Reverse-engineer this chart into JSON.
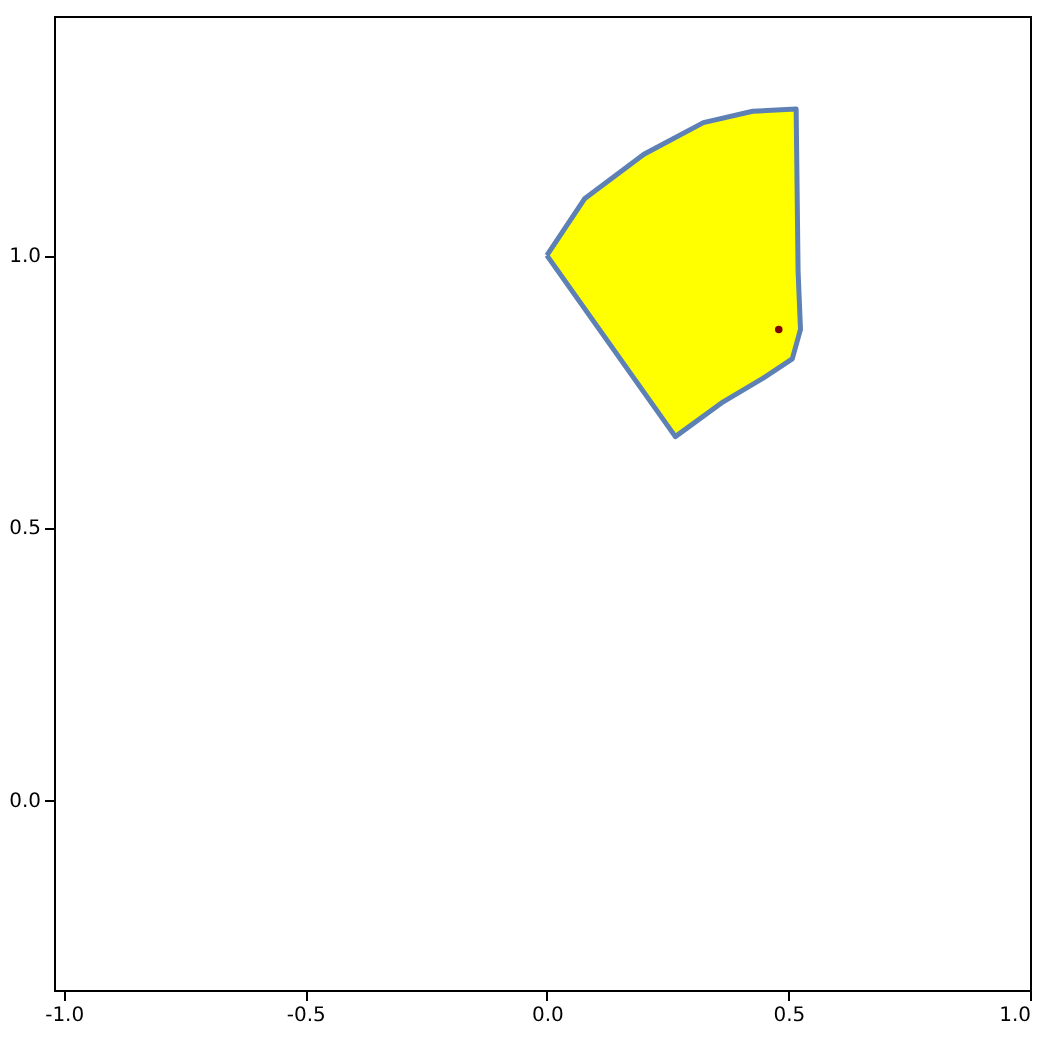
{
  "chart_data": {
    "type": "area",
    "xlim": [
      -1.02,
      1.0
    ],
    "ylim": [
      -0.35,
      1.44
    ],
    "xticks": [
      {
        "value": -1,
        "label": "-1.0"
      },
      {
        "value": -0.5,
        "label": "-0.5"
      },
      {
        "value": 0,
        "label": "0.0"
      },
      {
        "value": 0.5,
        "label": "0.5"
      },
      {
        "value": 1,
        "label": "1.0"
      }
    ],
    "yticks": [
      {
        "value": 0,
        "label": "0.0"
      },
      {
        "value": 0.5,
        "label": "0.5"
      },
      {
        "value": 1,
        "label": "1.0"
      }
    ],
    "grid": false,
    "series": [
      {
        "color": "#ffff00",
        "x": [
          0.0,
          0.078,
          0.201,
          0.324,
          0.426,
          0.516,
          0.52,
          0.525,
          0.508,
          0.447,
          0.365,
          0.266,
          0.0
        ],
        "values": [
          1.0,
          1.104,
          1.186,
          1.244,
          1.265,
          1.269,
          0.971,
          0.864,
          0.81,
          0.774,
          0.731,
          0.667,
          1.0
        ]
      },
      {
        "type": "scatter",
        "color": "#800000",
        "x": [
          0.48
        ],
        "values": [
          0.864
        ]
      }
    ]
  }
}
